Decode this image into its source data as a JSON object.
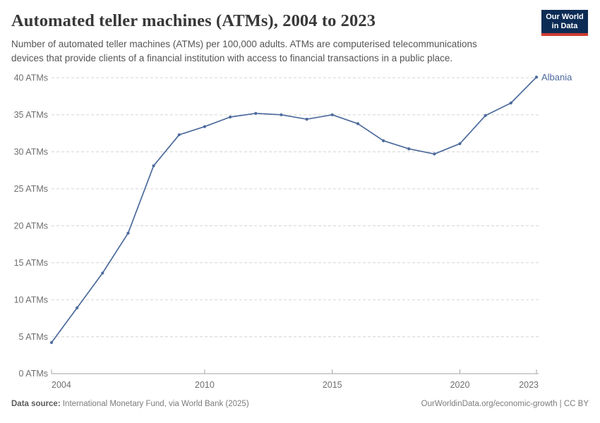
{
  "header": {
    "title": "Automated teller machines (ATMs), 2004 to 2023",
    "subtitle_lines": [
      "Number of automated teller machines (ATMs) per 100,000 adults. ATMs are computerised telecommunications",
      "devices that provide clients of a financial institution with access to financial transactions in a public place."
    ],
    "logo": {
      "line1": "Our World",
      "line2": "in Data"
    }
  },
  "footer": {
    "datasource_label": "Data source:",
    "datasource_text": " International Monetary Fund, via World Bank (2025)",
    "link_text": "OurWorldinData.org/economic-growth | CC BY"
  },
  "colors": {
    "series": "#4c6a9c",
    "grid": "#dedede",
    "axis": "#a3a3a3",
    "logo_navy": "#0d2c55",
    "logo_red": "#cf3b31"
  },
  "chart_data": {
    "type": "line",
    "title": "Automated teller machines (ATMs), 2004 to 2023",
    "x": [
      2004,
      2005,
      2006,
      2007,
      2008,
      2009,
      2010,
      2011,
      2012,
      2013,
      2014,
      2015,
      2016,
      2017,
      2018,
      2019,
      2020,
      2021,
      2022,
      2023
    ],
    "series": [
      {
        "name": "Albania",
        "values": [
          4.2,
          8.9,
          13.6,
          19.0,
          28.1,
          32.3,
          33.4,
          34.7,
          35.2,
          35.0,
          34.4,
          35.0,
          33.8,
          31.5,
          30.4,
          29.7,
          31.1,
          34.9,
          36.6,
          40.1
        ]
      }
    ],
    "end_label": "Albania",
    "x_ticks": [
      2004,
      2010,
      2015,
      2020,
      2023
    ],
    "x_tick_labels": [
      "2004",
      "2010",
      "2015",
      "2020",
      "2023"
    ],
    "y_ticks": [
      0,
      5,
      10,
      15,
      20,
      25,
      30,
      35,
      40
    ],
    "y_tick_suffix": " ATMs",
    "xlim": [
      2004,
      2023
    ],
    "ylim": [
      0,
      40
    ],
    "grid": true,
    "legend_position": "end-of-line",
    "xlabel": "",
    "ylabel": ""
  }
}
